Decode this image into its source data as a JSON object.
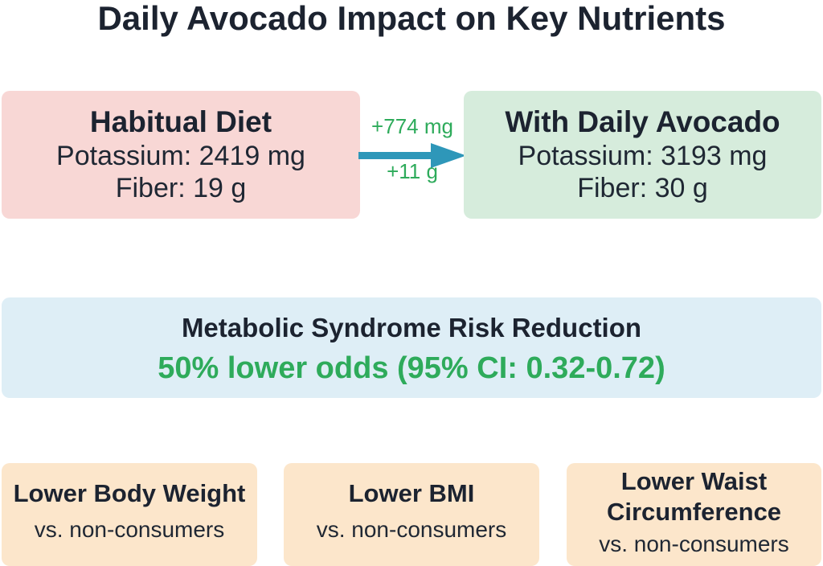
{
  "title": "Daily Avocado Impact on Key Nutrients",
  "habitual": {
    "heading": "Habitual Diet",
    "potassium": "Potassium: 2419 mg",
    "fiber": "Fiber: 19 g"
  },
  "change": {
    "potassium": "+774 mg",
    "fiber": "+11 g"
  },
  "avocado": {
    "heading": "With Daily Avocado",
    "potassium": "Potassium: 3193 mg",
    "fiber": "Fiber: 30 g"
  },
  "risk": {
    "heading": "Metabolic Syndrome Risk Reduction",
    "value": "50% lower odds (95% CI: 0.32-0.72)"
  },
  "outcomes": [
    {
      "heading": "Lower Body Weight",
      "sub": "vs. non-consumers"
    },
    {
      "heading": "Lower BMI",
      "sub": "vs. non-consumers"
    },
    {
      "heading": "Lower Waist Circumference",
      "sub": "vs. non-consumers"
    }
  ],
  "colors": {
    "habitual_box": "#f8d7d5",
    "avocado_box": "#d6ecdc",
    "risk_box": "#deeef6",
    "outcome_box": "#fce6cb",
    "arrow": "#2e97b9",
    "positive_text": "#2eab5b"
  },
  "icons": {
    "arrow": "right-arrow-icon"
  }
}
